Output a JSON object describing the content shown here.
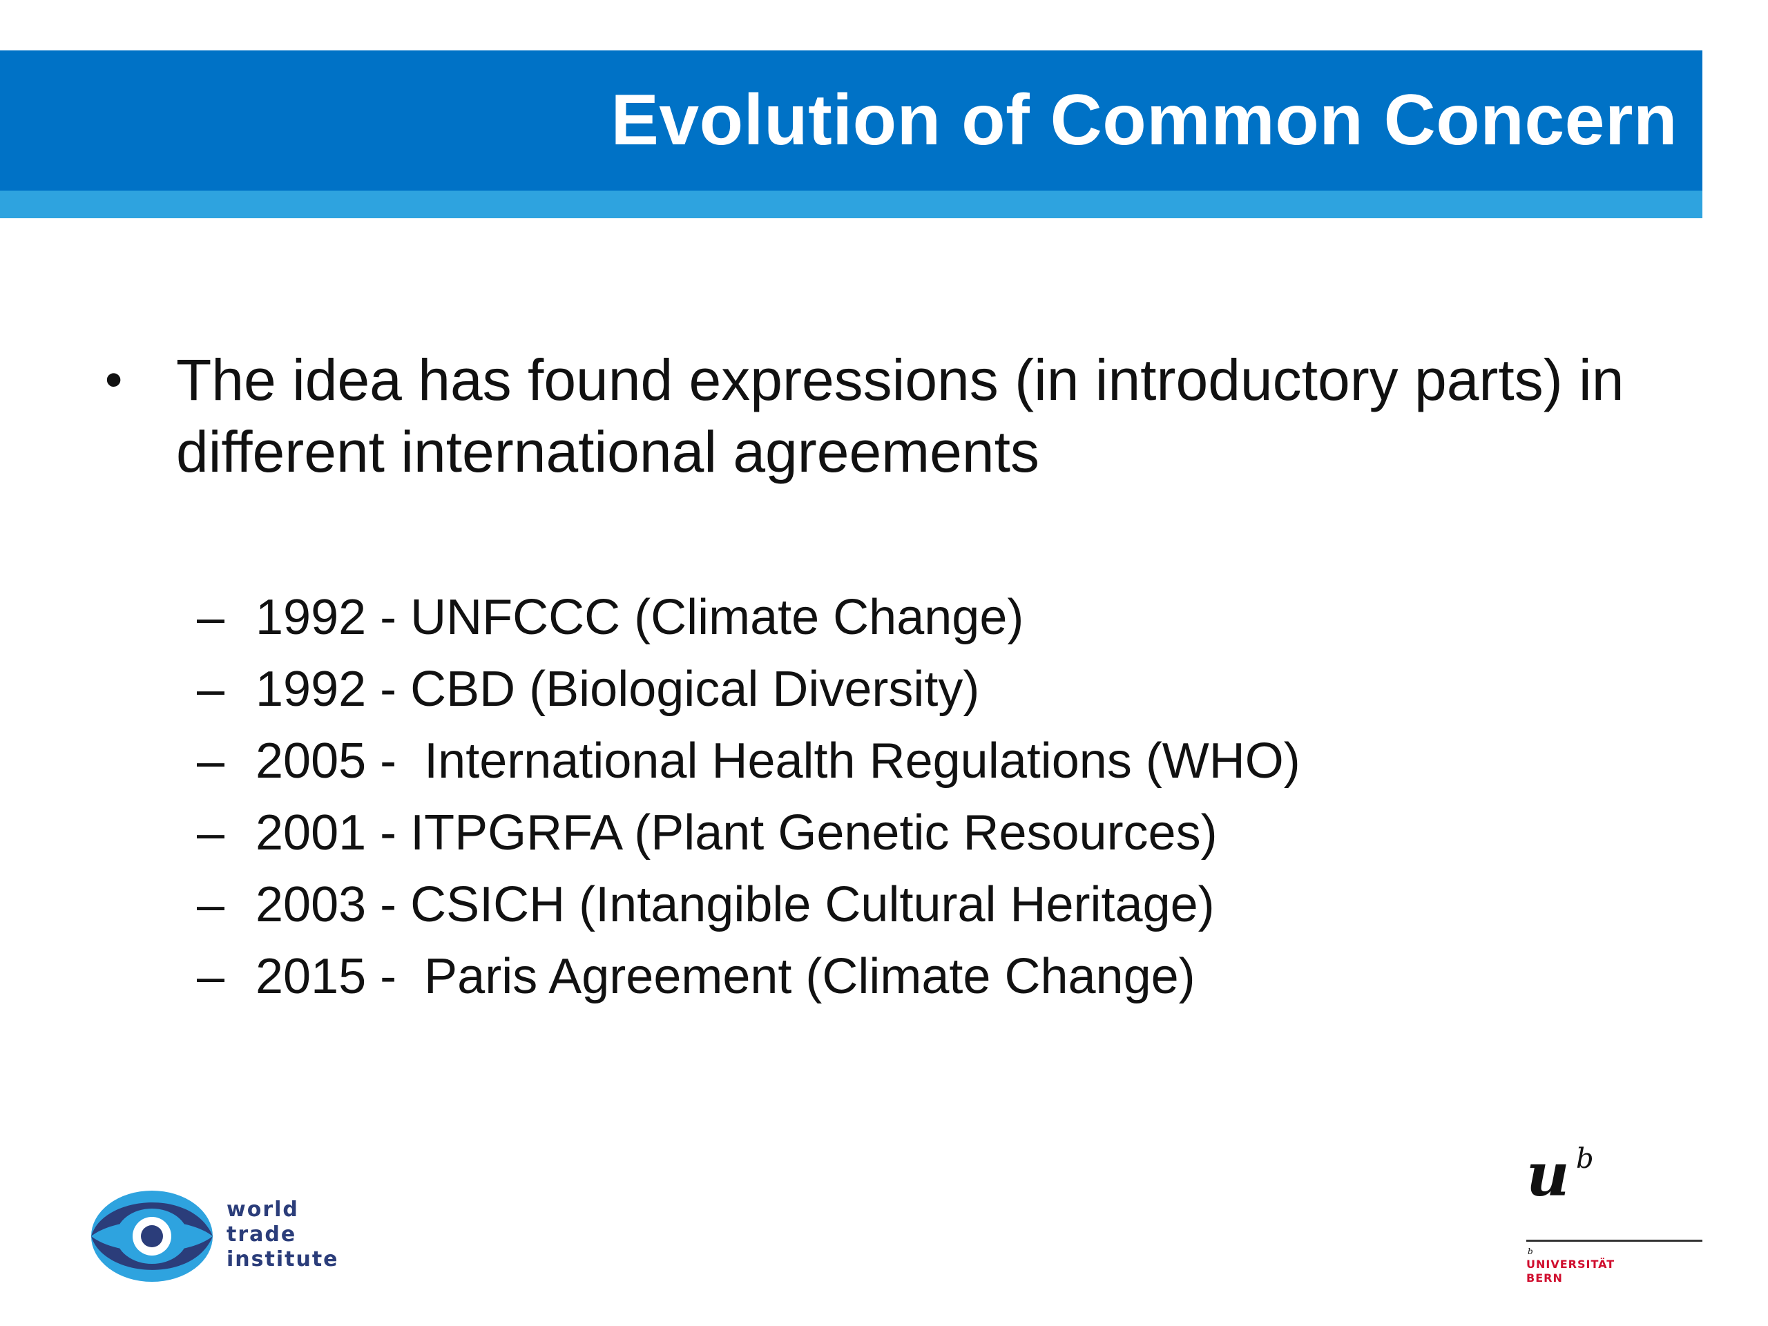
{
  "slide": {
    "title": "Evolution of Common Concern",
    "bullet": "The idea has found expressions (in introductory parts) in different international agreements",
    "bullet_marker": "•",
    "sub_marker": "–",
    "agreements": [
      "1992 - UNFCCC (Climate Change)",
      "1992 - CBD (Biological Diversity)",
      "2005 -  International Health Regulations (WHO)",
      "2001 - ITPGRFA (Plant Genetic Resources)",
      "2003 - CSICH (Intangible Cultural Heritage)",
      "2015 -  Paris Agreement (Climate Change)"
    ]
  },
  "logos": {
    "wti": {
      "line1": "world",
      "line2": "trade",
      "line3": "institute"
    },
    "unibern": {
      "u": "u",
      "b": "b",
      "small_b": "b",
      "name_line1": "UNIVERSITÄT",
      "name_line2": "BERN"
    }
  },
  "colors": {
    "title_band": "#0072c6",
    "title_stripe": "#2ea3df",
    "wti_light": "#2ea3df",
    "wti_dark": "#2b3d7a",
    "unibern_red": "#d00e2e"
  }
}
